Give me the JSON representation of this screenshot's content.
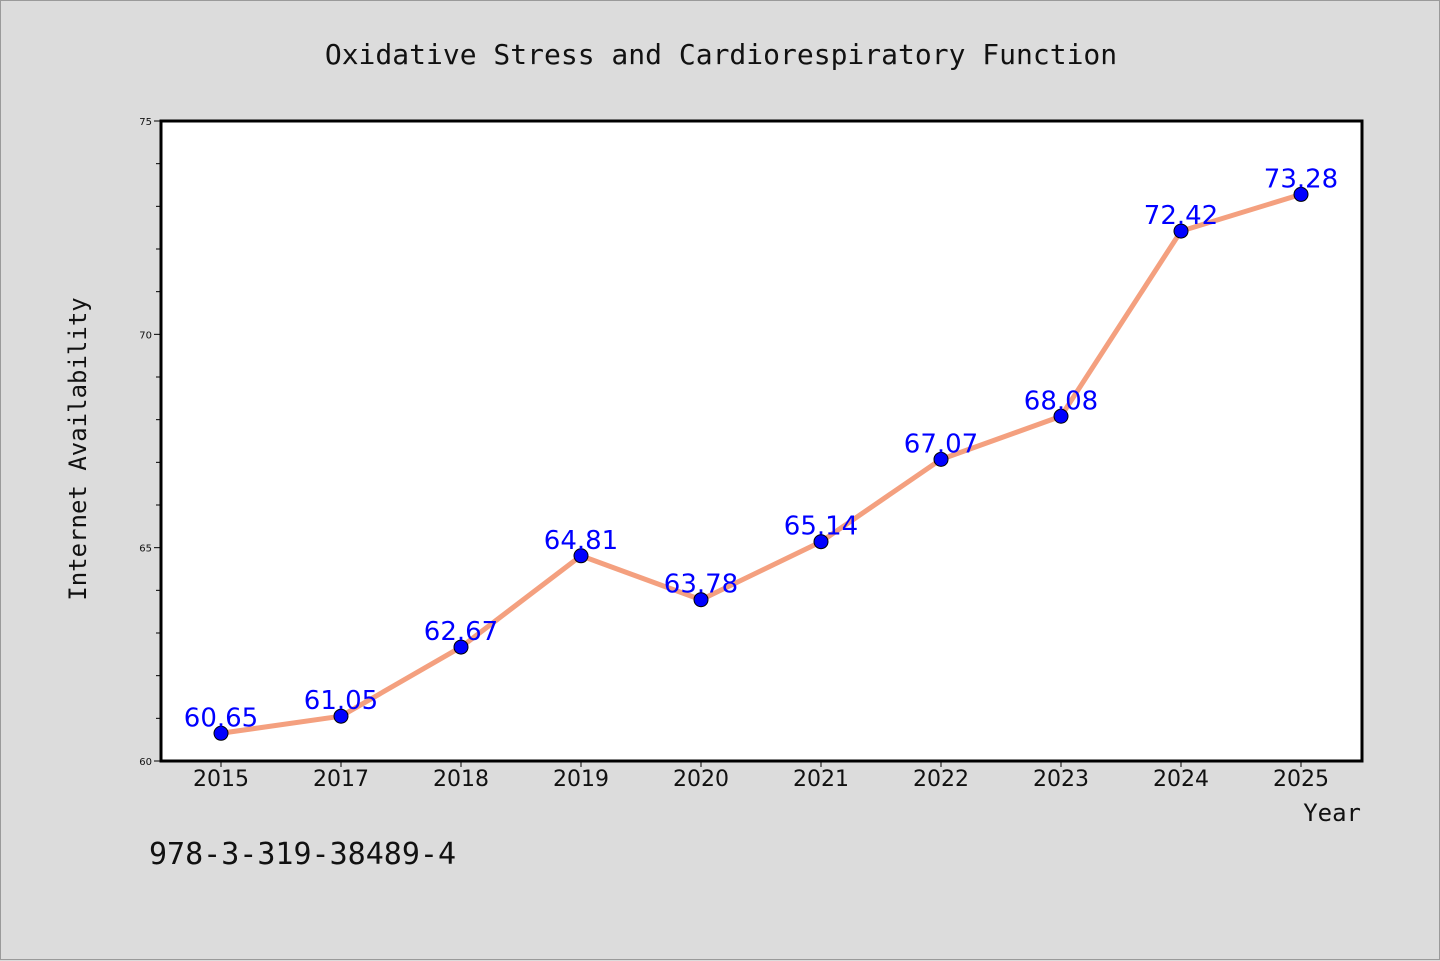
{
  "chart_data": {
    "type": "line",
    "title": "Oxidative Stress and Cardiorespiratory Function",
    "xlabel": "Year",
    "ylabel": "Internet Availability",
    "categories": [
      "2015",
      "2017",
      "2018",
      "2019",
      "2020",
      "2021",
      "2022",
      "2023",
      "2024",
      "2025"
    ],
    "series": [
      {
        "values": [
          60.65,
          61.05,
          62.67,
          64.81,
          63.78,
          65.14,
          67.07,
          68.08,
          72.42,
          73.28
        ],
        "labels": [
          "60.65",
          "61.05",
          "62.67",
          "64.81",
          "63.78",
          "65.14",
          "67.07",
          "68.08",
          "72.42",
          "73.28"
        ],
        "line_color": "#f4a07f",
        "marker_color": "#0000ff"
      }
    ],
    "ylim": [
      60,
      75
    ],
    "yticks": [
      "60",
      "65",
      "70",
      "75"
    ],
    "grid": false,
    "legend": false
  },
  "footnote": "978-3-319-38489-4"
}
